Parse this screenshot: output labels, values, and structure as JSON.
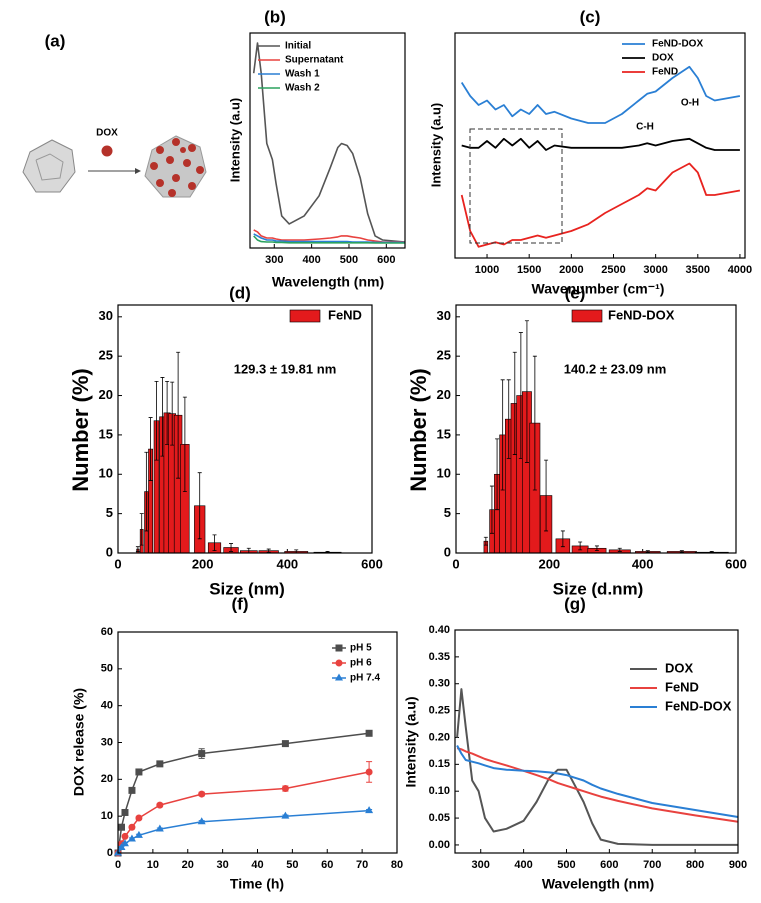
{
  "diagram": {
    "panel_label": "(a)",
    "label": "DOX"
  },
  "chart_data": [
    {
      "type": "line",
      "panel_label": "(b)",
      "x_label": "Wavelength (nm)",
      "y_label": "Intensity (a.u)",
      "x": [
        245,
        255,
        265,
        280,
        295,
        305,
        320,
        340,
        380,
        420,
        450,
        470,
        480,
        495,
        510,
        530,
        550,
        570,
        590,
        620,
        650
      ],
      "xlim": [
        235,
        650
      ],
      "ylim": [
        -0.02,
        1.05
      ],
      "xticks": [
        300,
        400,
        500,
        600
      ],
      "series": [
        {
          "name": "Initial",
          "color": "#555555",
          "values": [
            0.85,
            1.0,
            0.85,
            0.5,
            0.42,
            0.3,
            0.14,
            0.1,
            0.14,
            0.24,
            0.38,
            0.48,
            0.5,
            0.49,
            0.45,
            0.33,
            0.15,
            0.04,
            0.02,
            0.015,
            0.01
          ]
        },
        {
          "name": "Supernatant",
          "color": "#e8423f",
          "values": [
            0.07,
            0.06,
            0.04,
            0.03,
            0.03,
            0.025,
            0.02,
            0.02,
            0.02,
            0.025,
            0.03,
            0.035,
            0.04,
            0.04,
            0.035,
            0.03,
            0.02,
            0.015,
            0.01,
            0.01,
            0.01
          ]
        },
        {
          "name": "Wash 1",
          "color": "#2a7fd4",
          "values": [
            0.05,
            0.04,
            0.03,
            0.02,
            0.02,
            0.015,
            0.015,
            0.012,
            0.012,
            0.012,
            0.012,
            0.012,
            0.012,
            0.012,
            0.01,
            0.01,
            0.01,
            0.008,
            0.008,
            0.008,
            0.008
          ]
        },
        {
          "name": "Wash 2",
          "color": "#2ca25f",
          "values": [
            0.04,
            0.02,
            0.012,
            0.01,
            0.01,
            0.008,
            0.008,
            0.006,
            0.006,
            0.006,
            0.006,
            0.006,
            0.006,
            0.006,
            0.006,
            0.006,
            0.006,
            0.005,
            0.005,
            0.005,
            0.005
          ]
        }
      ]
    },
    {
      "type": "line",
      "panel_label": "(c)",
      "x_label": "Wavenumber (cm⁻¹)",
      "y_label": "Intensity (a.u)",
      "x": [
        700,
        800,
        900,
        1000,
        1100,
        1200,
        1300,
        1400,
        1500,
        1600,
        1700,
        1800,
        2000,
        2200,
        2400,
        2600,
        2800,
        2900,
        3000,
        3200,
        3400,
        3500,
        3600,
        3700,
        4000
      ],
      "xlim": [
        620,
        4060
      ],
      "ylim": [
        0,
        1
      ],
      "xticks": [
        1000,
        1500,
        2000,
        2500,
        3000,
        3500,
        4000
      ],
      "annotations": [
        "C-H",
        "O-H"
      ],
      "series": [
        {
          "name": "FeND-DOX",
          "color": "#2a7fd4",
          "values": [
            0.78,
            0.72,
            0.68,
            0.7,
            0.66,
            0.68,
            0.63,
            0.66,
            0.64,
            0.68,
            0.64,
            0.65,
            0.62,
            0.6,
            0.6,
            0.64,
            0.7,
            0.73,
            0.74,
            0.8,
            0.85,
            0.8,
            0.72,
            0.7,
            0.72
          ]
        },
        {
          "name": "DOX",
          "color": "#000000",
          "values": [
            0.5,
            0.49,
            0.49,
            0.52,
            0.49,
            0.53,
            0.5,
            0.53,
            0.49,
            0.52,
            0.48,
            0.5,
            0.49,
            0.49,
            0.49,
            0.49,
            0.5,
            0.51,
            0.5,
            0.52,
            0.53,
            0.51,
            0.49,
            0.48,
            0.48
          ]
        },
        {
          "name": "FeND",
          "color": "#e8231f",
          "values": [
            0.28,
            0.12,
            0.05,
            0.06,
            0.07,
            0.06,
            0.08,
            0.08,
            0.09,
            0.1,
            0.09,
            0.1,
            0.12,
            0.15,
            0.2,
            0.24,
            0.28,
            0.31,
            0.3,
            0.38,
            0.42,
            0.38,
            0.28,
            0.28,
            0.3
          ]
        }
      ]
    },
    {
      "type": "bar",
      "panel_label": "(d)",
      "x_label": "Size (nm)",
      "y_label": "Number (%)",
      "annotations": [
        "129.3 ± 19.81 nm"
      ],
      "x": [
        47,
        56,
        67,
        77,
        91,
        105,
        116,
        128,
        142,
        158,
        193,
        228,
        267,
        309,
        356,
        421,
        495
      ],
      "xlim": [
        0,
        600
      ],
      "ylim": [
        0,
        31.5
      ],
      "xticks": [
        0,
        200,
        400,
        600
      ],
      "yticks": [
        0,
        5,
        10,
        15,
        20,
        25,
        30
      ],
      "series": [
        {
          "name": "FeND",
          "color": "#e31a1c",
          "values": [
            0.5,
            3,
            7.8,
            13.2,
            16.8,
            17.3,
            17.8,
            17.7,
            17.5,
            13.8,
            6,
            1.3,
            0.7,
            0.3,
            0.3,
            0.2,
            0.1
          ],
          "errors": [
            0.3,
            2,
            5,
            4,
            5,
            5,
            4,
            4,
            8,
            6,
            4.2,
            1,
            0.5,
            0.3,
            0.2,
            0.2,
            0.1
          ]
        }
      ]
    },
    {
      "type": "bar",
      "panel_label": "(e)",
      "x_label": "Size (d.nm)",
      "y_label": "Number (%)",
      "annotations": [
        "140.2 ± 23.09 nm"
      ],
      "x": [
        64,
        77,
        88,
        100,
        113,
        126,
        139,
        152,
        169,
        193,
        229,
        266,
        302,
        351,
        411,
        484,
        548
      ],
      "xlim": [
        0,
        600
      ],
      "ylim": [
        0,
        31.5
      ],
      "xticks": [
        0,
        200,
        400,
        600
      ],
      "yticks": [
        0,
        5,
        10,
        15,
        20,
        25,
        30
      ],
      "series": [
        {
          "name": "FeND-DOX",
          "color": "#e31a1c",
          "values": [
            1.5,
            5.5,
            10,
            15,
            17,
            19,
            20,
            20.5,
            16.5,
            7.3,
            1.8,
            0.9,
            0.6,
            0.4,
            0.2,
            0.2,
            0.1
          ],
          "errors": [
            0.5,
            3,
            4.5,
            7,
            5,
            6.5,
            8,
            9,
            8.5,
            4.5,
            1,
            0.5,
            0.3,
            0.2,
            0.1,
            0.1,
            0.1
          ]
        }
      ]
    },
    {
      "type": "line",
      "panel_label": "(f)",
      "x_label": "Time (h)",
      "y_label": "DOX release (%)",
      "x": [
        0,
        1,
        2,
        4,
        6,
        12,
        24,
        48,
        72
      ],
      "xlim": [
        0,
        80
      ],
      "ylim": [
        0,
        60
      ],
      "xticks": [
        0,
        10,
        20,
        30,
        40,
        50,
        60,
        70,
        80
      ],
      "yticks": [
        0,
        10,
        20,
        30,
        40,
        50,
        60
      ],
      "series": [
        {
          "name": "pH 5",
          "color": "#4d4d4d",
          "marker": "square",
          "values": [
            0,
            7,
            11,
            17,
            22,
            24.2,
            27,
            29.7,
            32.5
          ],
          "errors": [
            0,
            0.5,
            0.5,
            0.6,
            0.6,
            0.4,
            1.3,
            0.5,
            0.4
          ]
        },
        {
          "name": "pH 6",
          "color": "#e8423f",
          "marker": "circle",
          "values": [
            0,
            2.5,
            4.5,
            7,
            9.5,
            13,
            16,
            17.5,
            22
          ],
          "errors": [
            0,
            0.3,
            0.3,
            0.4,
            0.4,
            0.4,
            0.5,
            0.7,
            2.8
          ]
        },
        {
          "name": "pH 7.4",
          "color": "#2a7fd4",
          "marker": "triangle",
          "values": [
            0,
            1.5,
            2.5,
            3.8,
            4.8,
            6.5,
            8.5,
            10,
            11.5
          ],
          "errors": [
            0,
            0.3,
            0.3,
            0.3,
            0.3,
            0.3,
            0.3,
            0.3,
            0.3
          ]
        }
      ]
    },
    {
      "type": "line",
      "panel_label": "(g)",
      "x_label": "Wavelength (nm)",
      "y_label": "Intensity (a.u)",
      "x": [
        245,
        255,
        265,
        280,
        295,
        310,
        330,
        360,
        400,
        430,
        460,
        480,
        500,
        520,
        540,
        560,
        580,
        620,
        700,
        800,
        900
      ],
      "xlim": [
        240,
        900
      ],
      "ylim": [
        -0.015,
        0.4
      ],
      "xticks": [
        300,
        400,
        500,
        600,
        700,
        800,
        900
      ],
      "yticks": [
        {
          "value": 0,
          "label": "0.00"
        },
        {
          "value": 0.05,
          "label": "0.05"
        },
        {
          "value": 0.1,
          "label": "0.10"
        },
        {
          "value": 0.15,
          "label": "0.15"
        },
        {
          "value": 0.2,
          "label": "0.20"
        },
        {
          "value": 0.25,
          "label": "0.25"
        },
        {
          "value": 0.3,
          "label": "0.30"
        },
        {
          "value": 0.35,
          "label": "0.35"
        },
        {
          "value": 0.4,
          "label": "0.40"
        }
      ],
      "series": [
        {
          "name": "DOX",
          "color": "#555555",
          "values": [
            0.2,
            0.29,
            0.22,
            0.12,
            0.1,
            0.05,
            0.025,
            0.03,
            0.045,
            0.08,
            0.125,
            0.14,
            0.14,
            0.11,
            0.08,
            0.04,
            0.01,
            0.002,
            0,
            0,
            0
          ]
        },
        {
          "name": "FeND",
          "color": "#e8423f",
          "values": [
            0.18,
            0.178,
            0.174,
            0.17,
            0.165,
            0.16,
            0.155,
            0.148,
            0.138,
            0.13,
            0.122,
            0.115,
            0.11,
            0.105,
            0.1,
            0.095,
            0.09,
            0.082,
            0.068,
            0.055,
            0.043
          ]
        },
        {
          "name": "FeND-DOX",
          "color": "#2a7fd4",
          "values": [
            0.185,
            0.17,
            0.158,
            0.155,
            0.152,
            0.148,
            0.143,
            0.14,
            0.138,
            0.137,
            0.135,
            0.133,
            0.13,
            0.125,
            0.12,
            0.112,
            0.105,
            0.095,
            0.078,
            0.065,
            0.052
          ]
        }
      ]
    }
  ]
}
